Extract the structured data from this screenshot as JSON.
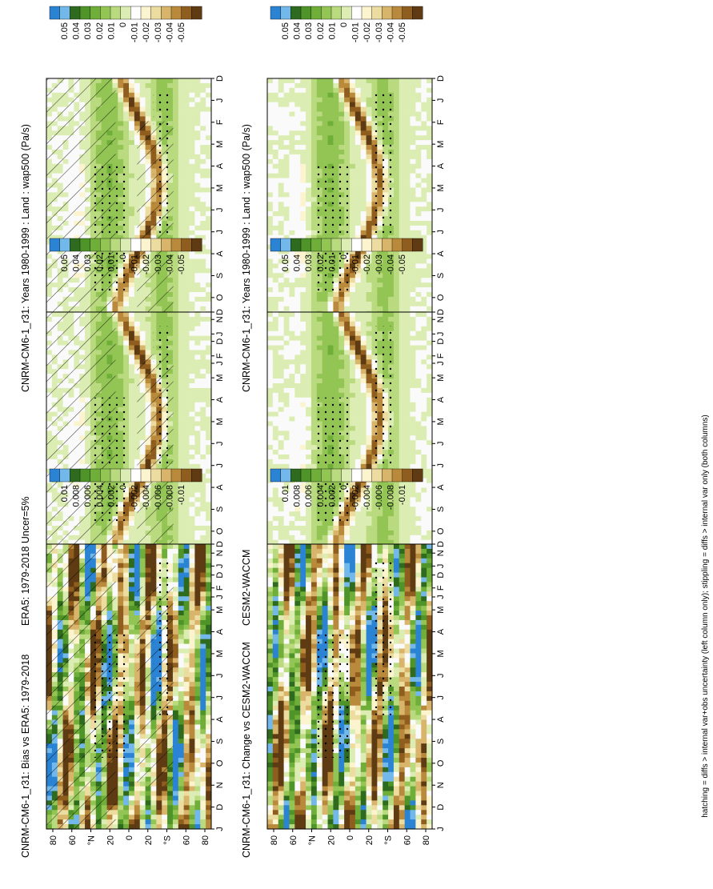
{
  "figure": {
    "footer": "hatching = diffs > internal var+obs uncertainty (left column only); stippling = diffs > internal var only (both columns)"
  },
  "chart_data": [
    {
      "type": "heatmap",
      "panel": "top-left",
      "title": "CNRM-CM6-1_r31: Years 1980-1999 : Land : wap500 (Pa/s)",
      "x_ticks": [
        "D",
        "J",
        "F",
        "M",
        "A",
        "M",
        "J",
        "J",
        "A",
        "S",
        "O",
        "N",
        "D",
        "J"
      ],
      "y_ticks": [
        "80",
        "60",
        "°N",
        "20",
        "0",
        "20",
        "°S",
        "60",
        "80"
      ],
      "colorbar": {
        "levels": [
          "0.05",
          "0.04",
          "0.03",
          "0.02",
          "0.01",
          "0",
          "-0.01",
          "-0.02",
          "-0.03",
          "-0.04",
          "-0.05"
        ]
      },
      "hatching": true,
      "stippling": true
    },
    {
      "type": "heatmap",
      "panel": "top-right",
      "title": "CNRM-CM6-1_r31: Years 1980-1999 : Land : wap500 (Pa/s)",
      "x_ticks": [
        "D",
        "J",
        "F",
        "M",
        "A",
        "M",
        "J",
        "J",
        "A",
        "S",
        "O",
        "N",
        "D",
        "J"
      ],
      "y_ticks": [
        "80",
        "60",
        "°N",
        "20",
        "0",
        "20",
        "°S",
        "60",
        "80"
      ],
      "colorbar": {
        "levels": [
          "0.05",
          "0.04",
          "0.03",
          "0.02",
          "0.01",
          "0",
          "-0.01",
          "-0.02",
          "-0.03",
          "-0.04",
          "-0.05"
        ]
      },
      "hatching": false,
      "stippling": true
    },
    {
      "type": "heatmap",
      "panel": "middle-left",
      "title": "ERA5: 1979-2018 Uncer=5%",
      "x_ticks": [
        "D",
        "J",
        "F",
        "M",
        "A",
        "M",
        "J",
        "J",
        "A",
        "S",
        "O",
        "N",
        "D",
        "J"
      ],
      "y_ticks": [
        "80",
        "60",
        "°N",
        "20",
        "0",
        "20",
        "°S",
        "60",
        "80"
      ],
      "colorbar": {
        "levels": [
          "0.05",
          "0.04",
          "0.03",
          "0.02",
          "0.01",
          "0",
          "-0.01",
          "-0.02",
          "-0.03",
          "-0.04",
          "-0.05"
        ]
      },
      "hatching": true,
      "stippling": true
    },
    {
      "type": "heatmap",
      "panel": "middle-right",
      "title": "CESM2-WACCM",
      "x_ticks": [
        "D",
        "J",
        "F",
        "M",
        "A",
        "M",
        "J",
        "J",
        "A",
        "S",
        "O",
        "N",
        "D",
        "J"
      ],
      "y_ticks": [
        "80",
        "60",
        "°N",
        "20",
        "0",
        "20",
        "°S",
        "60",
        "80"
      ],
      "colorbar": {
        "levels": [
          "0.05",
          "0.04",
          "0.03",
          "0.02",
          "0.01",
          "0",
          "-0.01",
          "-0.02",
          "-0.03",
          "-0.04",
          "-0.05"
        ]
      },
      "hatching": false,
      "stippling": true
    },
    {
      "type": "heatmap",
      "panel": "bottom-left",
      "title": "CNRM-CM6-1_r31: Bias vs ERA5: 1979-2018",
      "x_ticks": [
        "D",
        "J",
        "F",
        "M",
        "A",
        "M",
        "J",
        "J",
        "A",
        "S",
        "O",
        "N",
        "D",
        "J"
      ],
      "y_ticks": [
        "80",
        "60",
        "°N",
        "20",
        "0",
        "20",
        "°S",
        "60",
        "80"
      ],
      "colorbar": {
        "levels": [
          "0.01",
          "0.008",
          "0.006",
          "0.004",
          "0.002",
          "0",
          "-0.002",
          "-0.004",
          "-0.006",
          "-0.008",
          "-0.01"
        ]
      },
      "hatching": true,
      "stippling": true
    },
    {
      "type": "heatmap",
      "panel": "bottom-right",
      "title": "CNRM-CM6-1_r31: Change vs CESM2-WACCM",
      "x_ticks": [
        "D",
        "J",
        "F",
        "M",
        "A",
        "M",
        "J",
        "J",
        "A",
        "S",
        "O",
        "N",
        "D",
        "J"
      ],
      "y_ticks": [
        "80",
        "60",
        "°N",
        "20",
        "0",
        "20",
        "°S",
        "60",
        "80"
      ],
      "colorbar": {
        "levels": [
          "0.01",
          "0.008",
          "0.006",
          "0.004",
          "0.002",
          "0",
          "-0.002",
          "-0.004",
          "-0.006",
          "-0.008",
          "-0.01"
        ]
      },
      "hatching": false,
      "stippling": true
    }
  ]
}
